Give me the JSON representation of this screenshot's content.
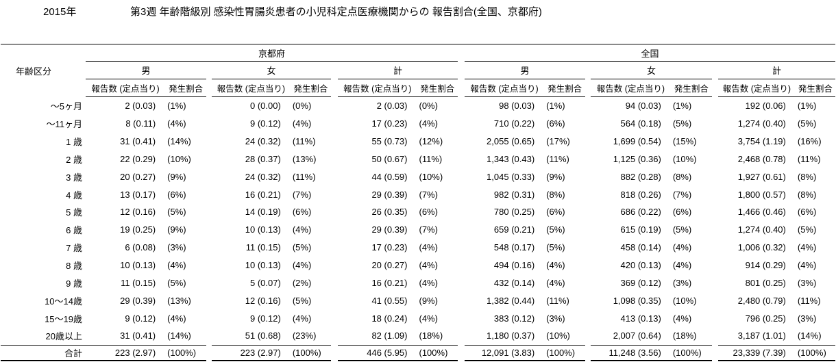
{
  "title": {
    "year": "2015年",
    "text": "第3週 年齢階級別 感染性胃腸炎患者の小児科定点医療機関からの 報告割合(全国、京都府)"
  },
  "table": {
    "age_header": "年齢区分",
    "regions": {
      "kyoto": "京都府",
      "zenkoku": "全国"
    },
    "sex_headers": [
      "男",
      "女",
      "計",
      "男",
      "女",
      "計"
    ],
    "col_headers": {
      "count": "報告数 (定点当り)",
      "ratio": "発生割合"
    },
    "rows": [
      {
        "age": "〜5ヶ月",
        "total": false,
        "cells": [
          "2 (0.03)",
          "(1%)",
          "0 (0.00)",
          "(0%)",
          "2 (0.03)",
          "(0%)",
          "98 (0.03)",
          "(1%)",
          "94 (0.03)",
          "(1%)",
          "192 (0.06)",
          "(1%)"
        ]
      },
      {
        "age": "〜11ヶ月",
        "total": false,
        "cells": [
          "8 (0.11)",
          "(4%)",
          "9 (0.12)",
          "(4%)",
          "17 (0.23)",
          "(4%)",
          "710 (0.22)",
          "(6%)",
          "564 (0.18)",
          "(5%)",
          "1,274 (0.40)",
          "(5%)"
        ]
      },
      {
        "age": "1 歳",
        "total": false,
        "cells": [
          "31 (0.41)",
          "(14%)",
          "24 (0.32)",
          "(11%)",
          "55 (0.73)",
          "(12%)",
          "2,055 (0.65)",
          "(17%)",
          "1,699 (0.54)",
          "(15%)",
          "3,754 (1.19)",
          "(16%)"
        ]
      },
      {
        "age": "2 歳",
        "total": false,
        "cells": [
          "22 (0.29)",
          "(10%)",
          "28 (0.37)",
          "(13%)",
          "50 (0.67)",
          "(11%)",
          "1,343 (0.43)",
          "(11%)",
          "1,125 (0.36)",
          "(10%)",
          "2,468 (0.78)",
          "(11%)"
        ]
      },
      {
        "age": "3 歳",
        "total": false,
        "cells": [
          "20 (0.27)",
          "(9%)",
          "24 (0.32)",
          "(11%)",
          "44 (0.59)",
          "(10%)",
          "1,045 (0.33)",
          "(9%)",
          "882 (0.28)",
          "(8%)",
          "1,927 (0.61)",
          "(8%)"
        ]
      },
      {
        "age": "4 歳",
        "total": false,
        "cells": [
          "13 (0.17)",
          "(6%)",
          "16 (0.21)",
          "(7%)",
          "29 (0.39)",
          "(7%)",
          "982 (0.31)",
          "(8%)",
          "818 (0.26)",
          "(7%)",
          "1,800 (0.57)",
          "(8%)"
        ]
      },
      {
        "age": "5 歳",
        "total": false,
        "cells": [
          "12 (0.16)",
          "(5%)",
          "14 (0.19)",
          "(6%)",
          "26 (0.35)",
          "(6%)",
          "780 (0.25)",
          "(6%)",
          "686 (0.22)",
          "(6%)",
          "1,466 (0.46)",
          "(6%)"
        ]
      },
      {
        "age": "6 歳",
        "total": false,
        "cells": [
          "19 (0.25)",
          "(9%)",
          "10 (0.13)",
          "(4%)",
          "29 (0.39)",
          "(7%)",
          "659 (0.21)",
          "(5%)",
          "615 (0.19)",
          "(5%)",
          "1,274 (0.40)",
          "(5%)"
        ]
      },
      {
        "age": "7 歳",
        "total": false,
        "cells": [
          "6 (0.08)",
          "(3%)",
          "11 (0.15)",
          "(5%)",
          "17 (0.23)",
          "(4%)",
          "548 (0.17)",
          "(5%)",
          "458 (0.14)",
          "(4%)",
          "1,006 (0.32)",
          "(4%)"
        ]
      },
      {
        "age": "8 歳",
        "total": false,
        "cells": [
          "10 (0.13)",
          "(4%)",
          "10 (0.13)",
          "(4%)",
          "20 (0.27)",
          "(4%)",
          "494 (0.16)",
          "(4%)",
          "420 (0.13)",
          "(4%)",
          "914 (0.29)",
          "(4%)"
        ]
      },
      {
        "age": "9 歳",
        "total": false,
        "cells": [
          "11 (0.15)",
          "(5%)",
          "5 (0.07)",
          "(2%)",
          "16 (0.21)",
          "(4%)",
          "432 (0.14)",
          "(4%)",
          "369 (0.12)",
          "(3%)",
          "801 (0.25)",
          "(3%)"
        ]
      },
      {
        "age": "10〜14歳",
        "total": false,
        "cells": [
          "29 (0.39)",
          "(13%)",
          "12 (0.16)",
          "(5%)",
          "41 (0.55)",
          "(9%)",
          "1,382 (0.44)",
          "(11%)",
          "1,098 (0.35)",
          "(10%)",
          "2,480 (0.79)",
          "(11%)"
        ]
      },
      {
        "age": "15〜19歳",
        "total": false,
        "cells": [
          "9 (0.12)",
          "(4%)",
          "9 (0.12)",
          "(4%)",
          "18 (0.24)",
          "(4%)",
          "383 (0.12)",
          "(3%)",
          "413 (0.13)",
          "(4%)",
          "796 (0.25)",
          "(3%)"
        ]
      },
      {
        "age": "20歳以上",
        "total": false,
        "cells": [
          "31 (0.41)",
          "(14%)",
          "51 (0.68)",
          "(23%)",
          "82 (1.09)",
          "(18%)",
          "1,180 (0.37)",
          "(10%)",
          "2,007 (0.64)",
          "(18%)",
          "3,187 (1.01)",
          "(14%)"
        ]
      },
      {
        "age": "合計",
        "total": true,
        "cells": [
          "223 (2.97)",
          "(100%)",
          "223 (2.97)",
          "(100%)",
          "446 (5.95)",
          "(100%)",
          "12,091 (3.83)",
          "(100%)",
          "11,248 (3.56)",
          "(100%)",
          "23,339 (7.39)",
          "(100%)"
        ]
      }
    ]
  }
}
